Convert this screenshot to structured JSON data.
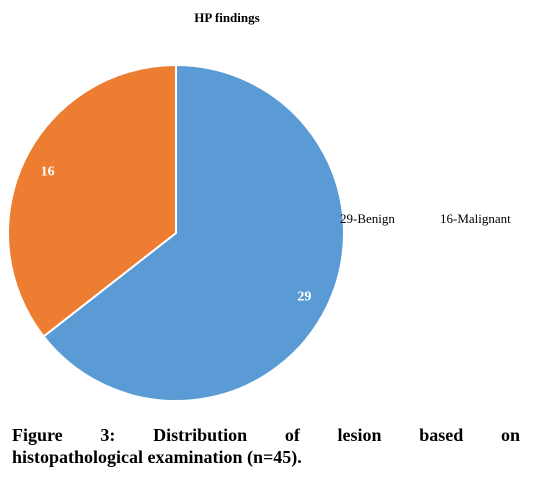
{
  "chart_data": {
    "type": "pie",
    "title": "HP findings",
    "categories": [
      "Benign",
      "Malignant"
    ],
    "values": [
      29,
      16
    ],
    "data_labels": [
      "29",
      "16"
    ],
    "legend_entries": [
      "29-Benign",
      "16-Malignant"
    ],
    "legend_placement": "right",
    "colors": [
      "#5B9BD5",
      "#ED7D31"
    ]
  },
  "caption": {
    "words": [
      "Figure",
      "3:",
      "Distribution",
      "of",
      "lesion",
      "based",
      "on"
    ],
    "line2": "histopathological examination (n=45)."
  }
}
